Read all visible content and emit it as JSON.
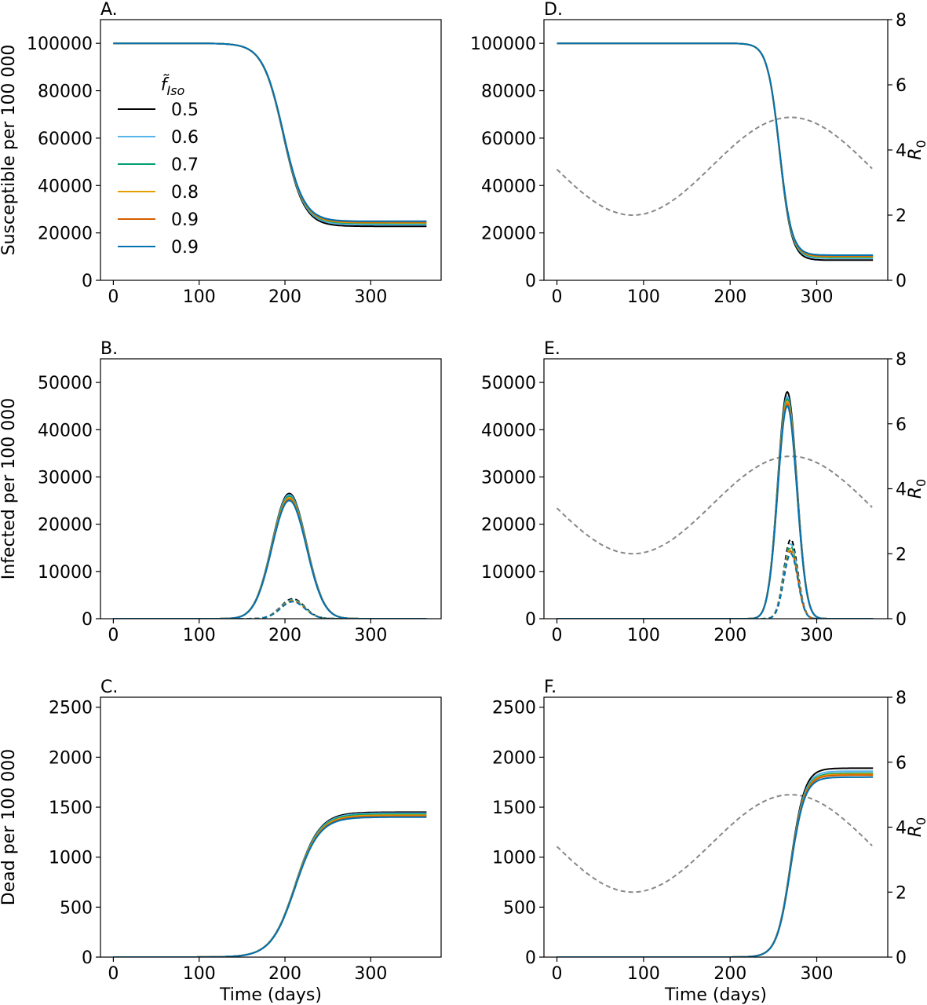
{
  "legend": {
    "title": "f̃",
    "title_sub": "Iso",
    "entries": [
      {
        "label": "0.5",
        "color": "#000000"
      },
      {
        "label": "0.6",
        "color": "#56b4e9"
      },
      {
        "label": "0.7",
        "color": "#009e73"
      },
      {
        "label": "0.8",
        "color": "#e69f00"
      },
      {
        "label": "0.9",
        "color": "#d55e00"
      },
      {
        "label": "0.9",
        "color": "#0072b2"
      }
    ]
  },
  "r0_style": {
    "color": "#888888",
    "dash": "6,4"
  },
  "chart_data": [
    {
      "id": "A",
      "panel_label": "A.",
      "type": "line",
      "ylabel": "Susceptible per 100 000",
      "xlabel": "",
      "xlim": [
        -15,
        382
      ],
      "ylim": [
        0,
        110000
      ],
      "xticks": [
        0,
        100,
        200,
        300
      ],
      "yticks": [
        0,
        20000,
        40000,
        60000,
        80000,
        100000
      ],
      "show_legend": true,
      "curve": {
        "kind": "decline",
        "start": 100000,
        "mid": 198,
        "width": 12,
        "finals": [
          22800,
          23500,
          24000,
          24300,
          24600,
          24900
        ]
      }
    },
    {
      "id": "D",
      "panel_label": "D.",
      "type": "line",
      "ylabel": "",
      "xlabel": "",
      "xlim": [
        -15,
        382
      ],
      "ylim": [
        0,
        110000
      ],
      "xticks": [
        0,
        100,
        200,
        300
      ],
      "yticks": [
        0,
        20000,
        40000,
        60000,
        80000,
        100000
      ],
      "y2label": "R",
      "y2label_sub": "0",
      "y2lim": [
        0,
        8
      ],
      "y2ticks": [
        0,
        2,
        4,
        6,
        8
      ],
      "r0": {
        "mean": 3.5,
        "amplitude": 1.5,
        "peak_day": 270,
        "period": 365
      },
      "curve": {
        "kind": "decline",
        "start": 100000,
        "mid": 257,
        "width": 7,
        "finals": [
          8500,
          9300,
          9700,
          10000,
          10300,
          10600
        ]
      }
    },
    {
      "id": "B",
      "panel_label": "B.",
      "type": "line",
      "ylabel": "Infected per 100 000",
      "xlabel": "",
      "xlim": [
        -15,
        382
      ],
      "ylim": [
        0,
        55000
      ],
      "xticks": [
        0,
        100,
        200,
        300
      ],
      "yticks": [
        0,
        10000,
        20000,
        30000,
        40000,
        50000
      ],
      "curve": {
        "kind": "peak",
        "center": 205,
        "width": 20,
        "peaks": [
          26500,
          26200,
          25900,
          25600,
          25300,
          25000
        ],
        "dashed_center": 209,
        "dashed_width": 14,
        "dashed_peaks": [
          4200,
          4000,
          3900,
          3800,
          3700,
          3600
        ]
      }
    },
    {
      "id": "E",
      "panel_label": "E.",
      "type": "line",
      "ylabel": "",
      "xlabel": "",
      "xlim": [
        -15,
        382
      ],
      "ylim": [
        0,
        55000
      ],
      "xticks": [
        0,
        100,
        200,
        300
      ],
      "yticks": [
        0,
        10000,
        20000,
        30000,
        40000,
        50000
      ],
      "y2label": "R",
      "y2label_sub": "0",
      "y2lim": [
        0,
        8
      ],
      "y2ticks": [
        0,
        2,
        4,
        6,
        8
      ],
      "r0": {
        "mean": 3.5,
        "amplitude": 1.5,
        "peak_day": 270,
        "period": 365
      },
      "curve": {
        "kind": "peak",
        "center": 266,
        "width": 11,
        "peaks": [
          48000,
          47000,
          46500,
          46000,
          45500,
          45000
        ],
        "dashed_center": 270,
        "dashed_width": 8,
        "dashed_peaks": [
          16800,
          15800,
          15300,
          14800,
          14300,
          13800
        ]
      }
    },
    {
      "id": "C",
      "panel_label": "C.",
      "type": "line",
      "ylabel": "Dead per 100 000",
      "xlabel": "Time (days)",
      "xlim": [
        -15,
        382
      ],
      "ylim": [
        0,
        2600
      ],
      "xticks": [
        0,
        100,
        200,
        300
      ],
      "yticks": [
        0,
        500,
        1000,
        1500,
        2000,
        2500
      ],
      "curve": {
        "kind": "rise",
        "mid": 212,
        "width": 14,
        "finals": [
          1450,
          1440,
          1430,
          1420,
          1410,
          1400
        ]
      }
    },
    {
      "id": "F",
      "panel_label": "F.",
      "type": "line",
      "ylabel": "",
      "xlabel": "Time (days)",
      "xlim": [
        -15,
        382
      ],
      "ylim": [
        0,
        2600
      ],
      "xticks": [
        0,
        100,
        200,
        300
      ],
      "yticks": [
        0,
        500,
        1000,
        1500,
        2000,
        2500
      ],
      "y2label": "R",
      "y2label_sub": "0",
      "y2lim": [
        0,
        8
      ],
      "y2ticks": [
        0,
        2,
        4,
        6,
        8
      ],
      "r0": {
        "mean": 3.5,
        "amplitude": 1.5,
        "peak_day": 270,
        "period": 365
      },
      "curve": {
        "kind": "rise",
        "mid": 270,
        "width": 8,
        "finals": [
          1890,
          1860,
          1840,
          1830,
          1820,
          1800
        ]
      }
    }
  ]
}
